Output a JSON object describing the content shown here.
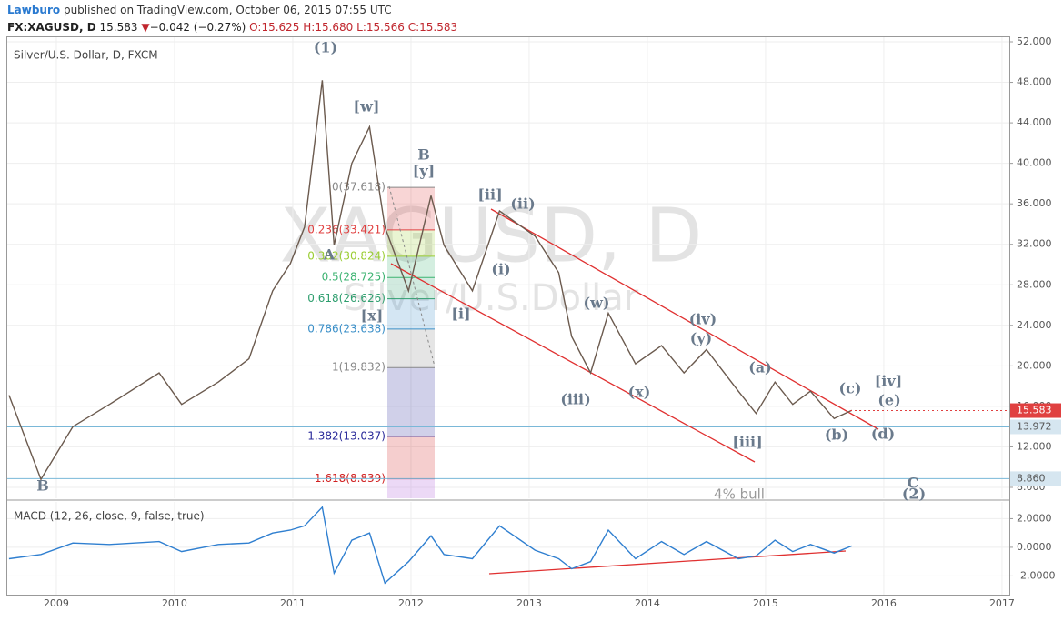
{
  "header": {
    "author": "Lawburo",
    "published": "published on TradingView.com, October 06, 2015 07:55 UTC",
    "symbol": "FX:XAGUSD, D",
    "last": "15.583",
    "arrow": "▼",
    "change": "−0.042 (−0.27%)",
    "open": "O:15.625",
    "high": "H:15.680",
    "low": "L:15.566",
    "close": "C:15.583"
  },
  "chart_data": [
    {
      "type": "line",
      "title": "Silver/U.S. Dollar, D, FXCM",
      "watermark": "XAGUSD, D",
      "watermark_sub": "Silver/U.S.Dollar",
      "color": "#6b5a4e",
      "x": [
        2008.6,
        2008.87,
        2009.14,
        2009.45,
        2009.87,
        2010.06,
        2010.37,
        2010.63,
        2010.83,
        2010.98,
        2011.1,
        2011.25,
        2011.35,
        2011.5,
        2011.65,
        2011.78,
        2011.98,
        2012.17,
        2012.28,
        2012.52,
        2012.75,
        2013.05,
        2013.25,
        2013.36,
        2013.52,
        2013.67,
        2013.9,
        2014.12,
        2014.31,
        2014.5,
        2014.77,
        2014.92,
        2015.08,
        2015.23,
        2015.38,
        2015.58,
        2015.73
      ],
      "values": [
        17.1,
        8.8,
        14,
        16.2,
        19.3,
        16.2,
        18.4,
        20.7,
        27.4,
        30.1,
        33.7,
        48.2,
        31.9,
        40,
        43.6,
        33.7,
        27.4,
        36.8,
        31.9,
        27.4,
        35.3,
        32.8,
        29.2,
        22.9,
        19.3,
        25.2,
        20.2,
        22,
        19.3,
        21.6,
        17.5,
        15.3,
        18.4,
        16.2,
        17.5,
        14.8,
        15.6
      ],
      "xlim": [
        2008.585,
        2017.062
      ],
      "ylim": [
        6.92,
        52.54
      ],
      "yticks": [
        {
          "value": 8,
          "label": "8.000"
        },
        {
          "value": 12,
          "label": "12.000"
        },
        {
          "value": 16,
          "label": "16.000"
        },
        {
          "value": 20,
          "label": "20.000"
        },
        {
          "value": 24,
          "label": "24.000"
        },
        {
          "value": 28,
          "label": "28.000"
        },
        {
          "value": 32,
          "label": "32.000"
        },
        {
          "value": 36,
          "label": "36.000"
        },
        {
          "value": 40,
          "label": "40.000"
        },
        {
          "value": 44,
          "label": "44.000"
        },
        {
          "value": 48,
          "label": "48.000"
        },
        {
          "value": 52,
          "label": "52.000"
        }
      ],
      "grid": true,
      "last_price": 15.583,
      "price_lines": [
        13.972,
        {
          "value": 8.86,
          "label": "8.860"
        }
      ],
      "fib_levels": [
        {
          "label": "0(37.618)",
          "price": 37.618,
          "color": "#888888"
        },
        {
          "label": "0.236(33.421)",
          "price": 33.421,
          "color": "#e04040"
        },
        {
          "label": "0.382(30.824)",
          "price": 30.824,
          "color": "#9acd32"
        },
        {
          "label": "0.5(28.725)",
          "price": 28.725,
          "color": "#3cb371"
        },
        {
          "label": "0.618(26.626)",
          "price": 26.626,
          "color": "#2e9e6e"
        },
        {
          "label": "0.786(23.638)",
          "price": 23.638,
          "color": "#3a8fc8"
        },
        {
          "label": "1(19.832)",
          "price": 19.832,
          "color": "#888888"
        },
        {
          "label": "1.382(13.037)",
          "price": 13.037,
          "color": "#2a2a9a"
        },
        {
          "label": "1.618(8.839)",
          "price": 8.839,
          "color": "#d02020"
        }
      ],
      "annotations": [
        "(1)",
        "[w]",
        "B",
        "[y]",
        "[ii]",
        "(ii)",
        "(i)",
        "A",
        "[x]",
        "[i]",
        "(w)",
        "(iv)",
        "(y)",
        "(iii)",
        "(x)",
        "(a)",
        "(c)",
        "[iv]",
        "(e)",
        "(d)",
        "(b)",
        "[iii]",
        "B",
        "C",
        "(2)",
        "4% bull"
      ]
    },
    {
      "type": "line",
      "title": "MACD (12, 26, close, 9, false, true)",
      "color": "#2f7fd0",
      "x": [
        2008.6,
        2008.87,
        2009.14,
        2009.45,
        2009.87,
        2010.06,
        2010.37,
        2010.63,
        2010.83,
        2010.98,
        2011.1,
        2011.25,
        2011.35,
        2011.5,
        2011.65,
        2011.78,
        2011.98,
        2012.17,
        2012.28,
        2012.52,
        2012.75,
        2013.05,
        2013.25,
        2013.36,
        2013.52,
        2013.67,
        2013.9,
        2014.12,
        2014.31,
        2014.5,
        2014.77,
        2014.92,
        2015.08,
        2015.23,
        2015.38,
        2015.58,
        2015.73
      ],
      "values": [
        -0.8,
        -0.5,
        0.3,
        0.2,
        0.4,
        -0.3,
        0.2,
        0.3,
        1.0,
        1.2,
        1.5,
        2.8,
        -1.8,
        0.5,
        1.0,
        -2.5,
        -1.0,
        0.8,
        -0.5,
        -0.8,
        1.5,
        -0.2,
        -0.8,
        -1.5,
        -1.0,
        1.2,
        -0.8,
        0.4,
        -0.5,
        0.4,
        -0.8,
        -0.6,
        0.5,
        -0.3,
        0.2,
        -0.4,
        0.1
      ],
      "xlim": [
        2008.585,
        2017.062
      ],
      "ylim": [
        -3.37,
        3.17
      ],
      "xticks": [
        2009,
        2010,
        2011,
        2012,
        2013,
        2014,
        2015,
        2016,
        2017
      ],
      "yticks": [
        {
          "value": 2,
          "label": "2.0000"
        },
        {
          "value": 0,
          "label": "0.0000"
        },
        {
          "value": -2,
          "label": "-2.0000"
        }
      ],
      "grid": true
    }
  ]
}
